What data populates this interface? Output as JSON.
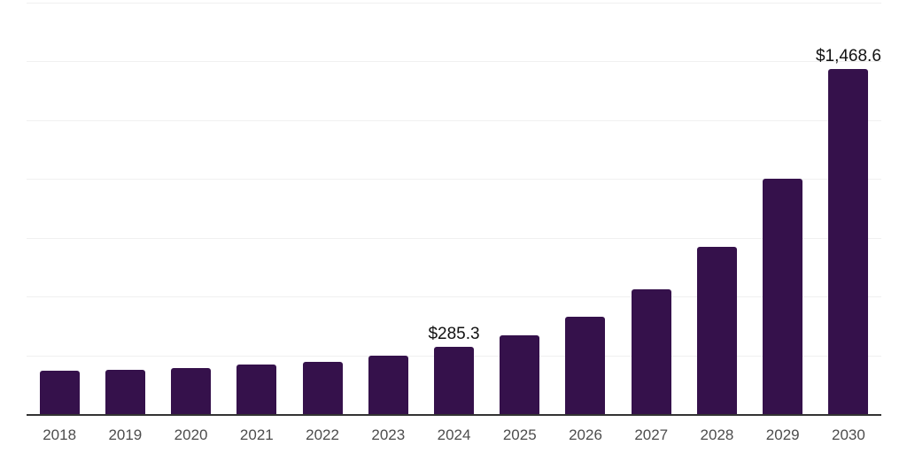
{
  "chart_data": {
    "type": "bar",
    "title": "",
    "xlabel": "",
    "ylabel": "",
    "categories": [
      "2018",
      "2019",
      "2020",
      "2021",
      "2022",
      "2023",
      "2024",
      "2025",
      "2026",
      "2027",
      "2028",
      "2029",
      "2030"
    ],
    "values": [
      185,
      189,
      196,
      209,
      222,
      248,
      285.3,
      335,
      414,
      530,
      710,
      1000,
      1468.6
    ],
    "data_labels": {
      "2024": "$285.3",
      "2030": "$1,468.6"
    },
    "ylim": [
      0,
      1750
    ],
    "gridline_step": 250,
    "grid": true,
    "legend_position": "none",
    "y_axis_tick_labels_visible": false
  },
  "style": {
    "bar_color": "#35114B",
    "axis_line_color": "#333333",
    "gridline_color": "#f0f0f0",
    "tick_label_color": "#4d4d4d",
    "data_label_color": "#111111",
    "background_color": "#ffffff"
  }
}
